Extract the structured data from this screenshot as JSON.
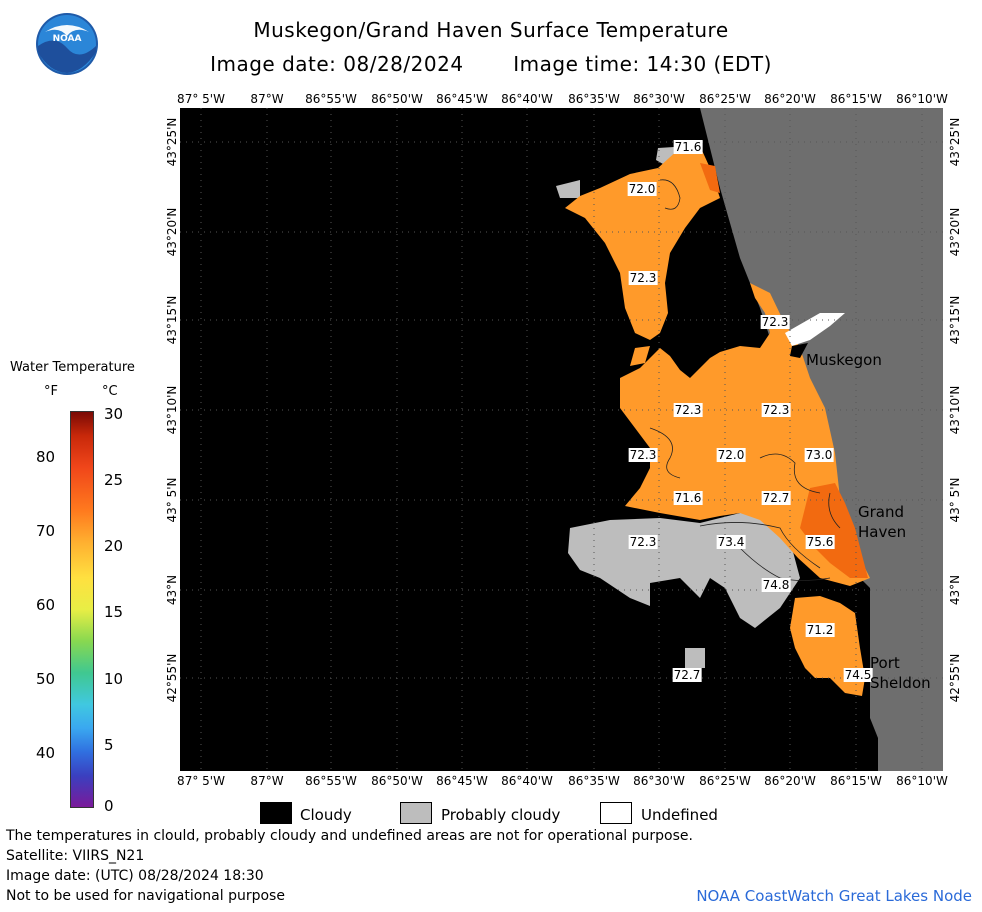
{
  "title": "Muskegon/Grand Haven Surface Temperature",
  "image_date_label": "Image date: 08/28/2024",
  "image_time_label": "Image time: 14:30 (EDT)",
  "logo_text": "NOAA",
  "lon_labels": [
    "87° 5'W",
    "87°W",
    "86°55'W",
    "86°50'W",
    "86°45'W",
    "86°40'W",
    "86°35'W",
    "86°30'W",
    "86°25'W",
    "86°20'W",
    "86°15'W",
    "86°10'W"
  ],
  "lat_labels": [
    "43°25'N",
    "43°20'N",
    "43°15'N",
    "43°10'N",
    "43° 5'N",
    "43°N",
    "42°55'N"
  ],
  "temperature_labels": [
    "71.6",
    "72.0",
    "72.3",
    "72.3",
    "72.3",
    "72.3",
    "72.3",
    "72.0",
    "73.0",
    "71.6",
    "72.7",
    "72.3",
    "73.4",
    "75.6",
    "74.8",
    "71.2",
    "72.7",
    "74.5"
  ],
  "place_names": {
    "muskegon": "Muskegon",
    "grand_haven_1": "Grand",
    "grand_haven_2": "Haven",
    "port_sheldon_1": "Port",
    "port_sheldon_2": "Sheldon"
  },
  "legend": {
    "title": "Water Temperature",
    "unit_f": "°F",
    "unit_c": "°C",
    "f_ticks": [
      "80",
      "70",
      "60",
      "50",
      "40"
    ],
    "c_ticks": [
      "30",
      "25",
      "20",
      "15",
      "10",
      "5",
      "0"
    ],
    "cloudy": "Cloudy",
    "probably_cloudy": "Probably cloudy",
    "undefined": "Undefined"
  },
  "colors": {
    "water_orange": "#ff9a2a",
    "warm_orange": "#f26a10",
    "land": "#6e6e6e",
    "probably_cloudy": "#bdbdbd",
    "cloudy": "#000000",
    "credit": "#2a6ad8"
  },
  "footer": {
    "line1": "The temperatures in clould, probably cloudy and undefined areas are not for operational purpose.",
    "line2": "Satellite: VIIRS_N21",
    "line3": "Image date: (UTC) 08/28/2024  18:30",
    "line4": "Not to be used for navigational purpose",
    "credit": "NOAA CoastWatch Great Lakes Node"
  }
}
